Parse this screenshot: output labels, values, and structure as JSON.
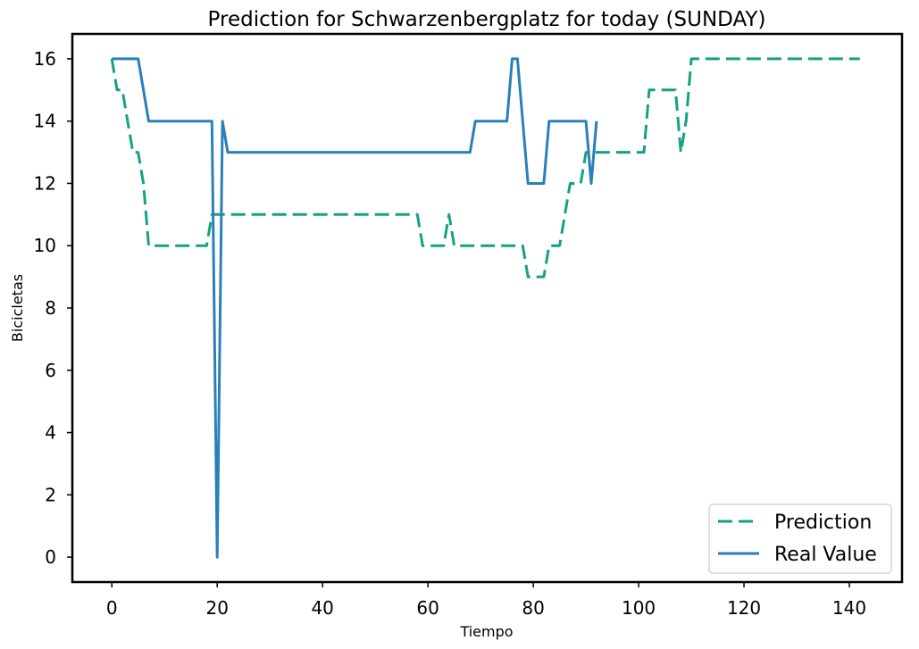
{
  "chart_data": {
    "type": "line",
    "title": "Prediction for Schwarzenbergplatz for today (SUNDAY)",
    "xlabel": "Tiempo",
    "ylabel": "Bicicletas",
    "xlim": [
      -7.5,
      150
    ],
    "ylim": [
      -0.8,
      16.8
    ],
    "xticks": [
      0,
      20,
      40,
      60,
      80,
      100,
      120,
      140
    ],
    "yticks": [
      0,
      2,
      4,
      6,
      8,
      10,
      12,
      14,
      16
    ],
    "grid": false,
    "legend_position": "lower-right",
    "series": [
      {
        "name": "Prediction",
        "style": "dashed",
        "color": "#16a085",
        "x": [
          0,
          1,
          2,
          3,
          4,
          5,
          6,
          7,
          8,
          9,
          10,
          11,
          12,
          13,
          14,
          15,
          16,
          17,
          18,
          19,
          20,
          21,
          22,
          23,
          24,
          25,
          26,
          27,
          28,
          29,
          30,
          31,
          32,
          33,
          34,
          35,
          36,
          37,
          38,
          39,
          40,
          41,
          42,
          43,
          44,
          45,
          46,
          47,
          48,
          49,
          50,
          51,
          52,
          53,
          54,
          55,
          56,
          57,
          58,
          59,
          60,
          61,
          62,
          63,
          64,
          65,
          66,
          67,
          68,
          69,
          70,
          71,
          72,
          73,
          74,
          75,
          76,
          77,
          78,
          79,
          80,
          81,
          82,
          83,
          84,
          85,
          86,
          87,
          88,
          89,
          90,
          91,
          92,
          93,
          94,
          95,
          96,
          97,
          98,
          99,
          100,
          101,
          102,
          103,
          104,
          105,
          106,
          107,
          108,
          109,
          110,
          111,
          112,
          113,
          114,
          115,
          116,
          117,
          118,
          119,
          120,
          121,
          122,
          123,
          124,
          125,
          126,
          127,
          128,
          129,
          130,
          131,
          132,
          133,
          134,
          135,
          136,
          137,
          138,
          139,
          140,
          141,
          142
        ],
        "y": [
          16,
          15,
          15,
          14,
          13,
          13,
          12,
          10,
          10,
          10,
          10,
          10,
          10,
          10,
          10,
          10,
          10,
          10,
          10,
          11,
          11,
          11,
          11,
          11,
          11,
          11,
          11,
          11,
          11,
          11,
          11,
          11,
          11,
          11,
          11,
          11,
          11,
          11,
          11,
          11,
          11,
          11,
          11,
          11,
          11,
          11,
          11,
          11,
          11,
          11,
          11,
          11,
          11,
          11,
          11,
          11,
          11,
          11,
          11,
          10,
          10,
          10,
          10,
          10,
          11,
          10,
          10,
          10,
          10,
          10,
          10,
          10,
          10,
          10,
          10,
          10,
          10,
          10,
          10,
          9,
          9,
          9,
          9,
          10,
          10,
          10,
          11,
          12,
          12,
          12,
          13,
          13,
          13,
          13,
          13,
          13,
          13,
          13,
          13,
          13,
          13,
          13,
          15,
          15,
          15,
          15,
          15,
          15,
          13,
          14,
          16,
          16,
          16,
          16,
          16,
          16,
          16,
          16,
          16,
          16,
          16,
          16,
          16,
          16,
          16,
          16,
          16,
          16,
          16,
          16,
          16,
          16,
          16,
          16,
          16,
          16,
          16,
          16,
          16,
          16,
          16,
          16,
          16
        ]
      },
      {
        "name": "Real Value",
        "style": "solid",
        "color": "#2980b9",
        "x": [
          0,
          1,
          2,
          3,
          4,
          5,
          6,
          7,
          8,
          9,
          10,
          11,
          12,
          13,
          14,
          15,
          16,
          17,
          18,
          19,
          20,
          21,
          22,
          23,
          24,
          25,
          26,
          27,
          28,
          29,
          30,
          31,
          32,
          33,
          34,
          35,
          36,
          37,
          38,
          39,
          40,
          41,
          42,
          43,
          44,
          45,
          46,
          47,
          48,
          49,
          50,
          51,
          52,
          53,
          54,
          55,
          56,
          57,
          58,
          59,
          60,
          61,
          62,
          63,
          64,
          65,
          66,
          67,
          68,
          69,
          70,
          71,
          72,
          73,
          74,
          75,
          76,
          77,
          78,
          79,
          80,
          81,
          82,
          83,
          84,
          85,
          86,
          87,
          88,
          89,
          90,
          91,
          92
        ],
        "y": [
          16,
          16,
          16,
          16,
          16,
          16,
          15,
          14,
          14,
          14,
          14,
          14,
          14,
          14,
          14,
          14,
          14,
          14,
          14,
          14,
          0,
          14,
          13,
          13,
          13,
          13,
          13,
          13,
          13,
          13,
          13,
          13,
          13,
          13,
          13,
          13,
          13,
          13,
          13,
          13,
          13,
          13,
          13,
          13,
          13,
          13,
          13,
          13,
          13,
          13,
          13,
          13,
          13,
          13,
          13,
          13,
          13,
          13,
          13,
          13,
          13,
          13,
          13,
          13,
          13,
          13,
          13,
          13,
          13,
          14,
          14,
          14,
          14,
          14,
          14,
          14,
          16,
          16,
          14,
          12,
          12,
          12,
          12,
          14,
          14,
          14,
          14,
          14,
          14,
          14,
          14,
          12,
          14
        ]
      }
    ]
  }
}
